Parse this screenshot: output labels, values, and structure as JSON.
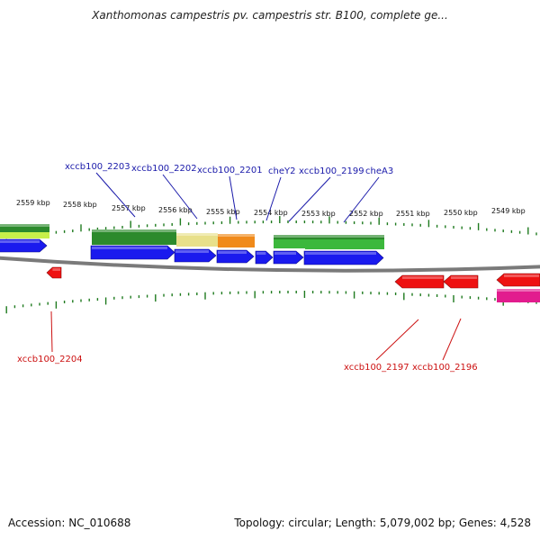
{
  "title": "Xanthomonas campestris pv. campestris str. B100, complete ge...",
  "colors": {
    "forward_feature": "#1a1aee",
    "reverse_feature": "#ee1111",
    "backbone": "#7a7a7a",
    "tick": "#1e7a1e",
    "forward_label": "#1a1aaa",
    "reverse_label": "#cc1111",
    "green_bar": "#2c8a2c",
    "light_green_bar": "#3cb83c",
    "yellow_bar": "#e8e08a",
    "orange_bar": "#f08a1a",
    "pink_bar": "#e21c8e"
  },
  "scale": {
    "unit": "kbp",
    "tick_labels": [
      "2559 kbp",
      "2558 kbp",
      "2557 kbp",
      "2556 kbp",
      "2555 kbp",
      "2554 kbp",
      "2553 kbp",
      "2552 kbp",
      "2551 kbp",
      "2550 kbp",
      "2549 kbp"
    ]
  },
  "forward_labels": [
    "xccb100_2203",
    "xccb100_2202",
    "xccb100_2201",
    "cheY2",
    "xccb100_2199",
    "cheA3"
  ],
  "reverse_labels": [
    "xccb100_2204",
    "xccb100_2197",
    "xccb100_2196"
  ],
  "footer": {
    "accession": "Accession: NC_010688",
    "summary": "Topology: circular; Length: 5,079,002 bp; Genes: 4,528"
  }
}
